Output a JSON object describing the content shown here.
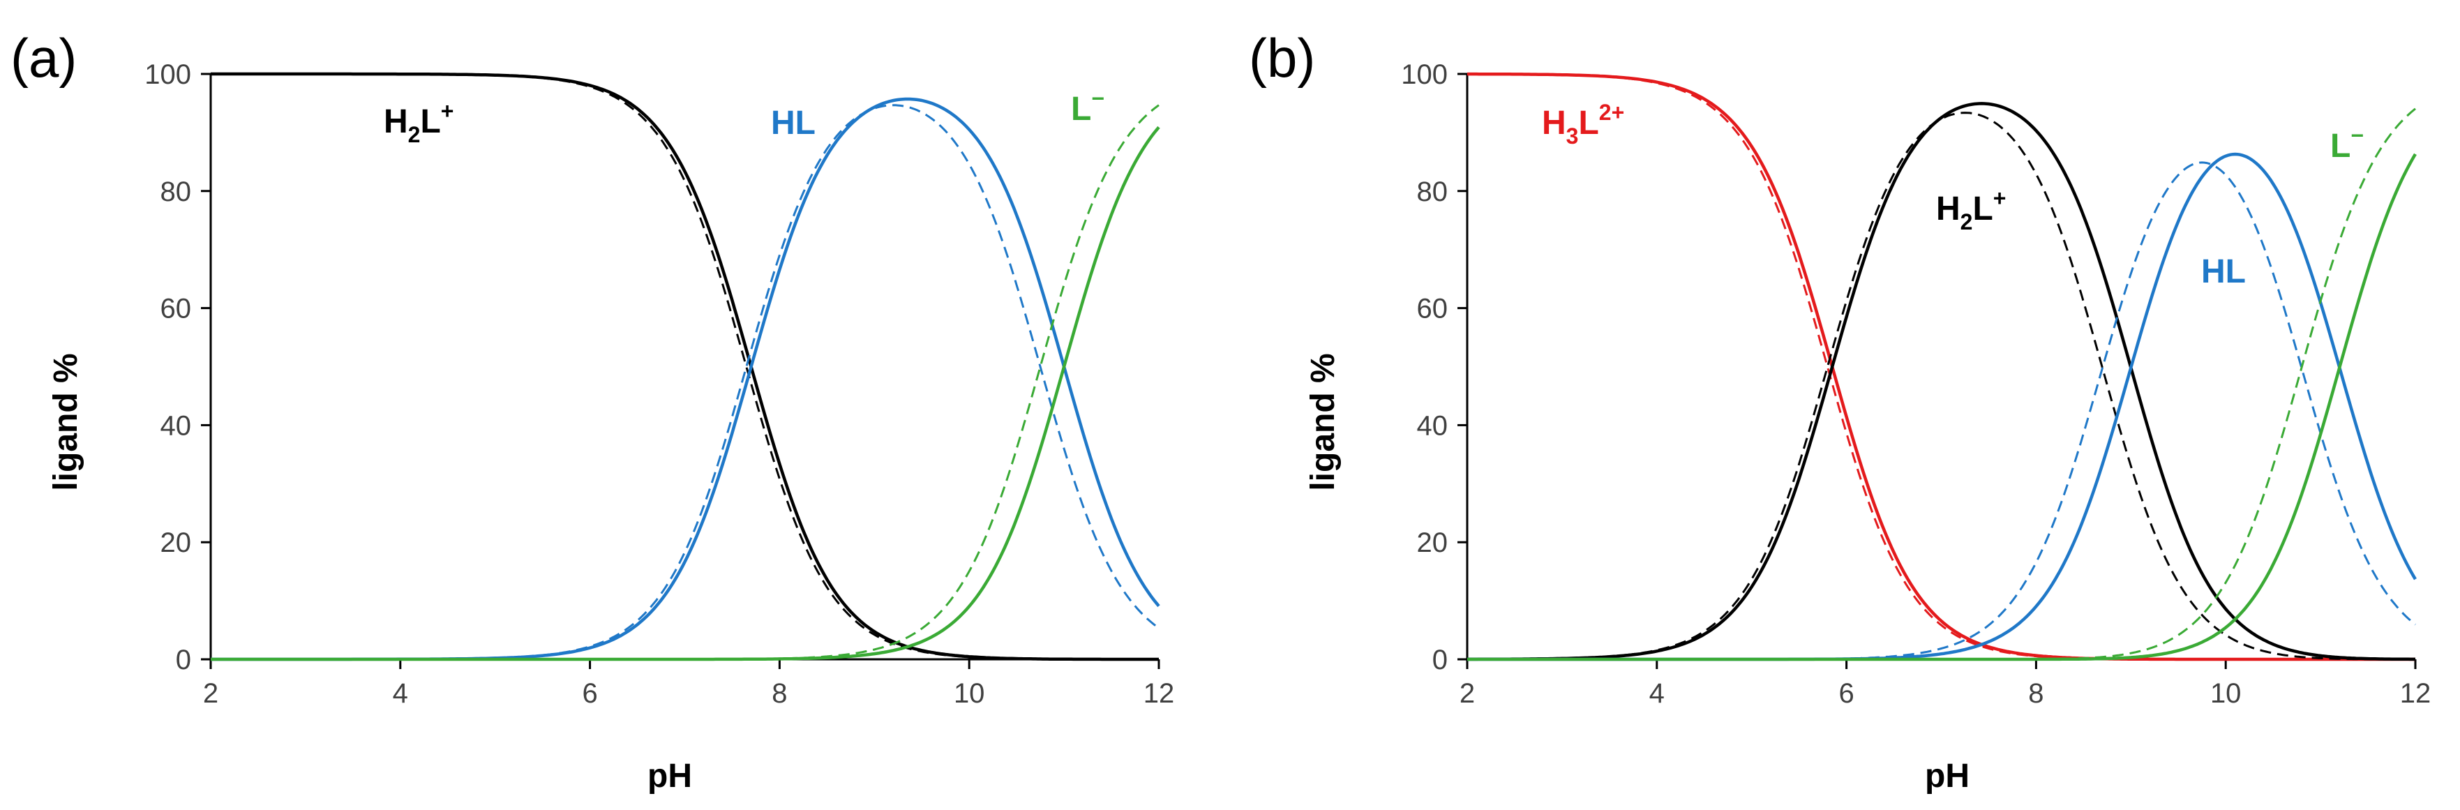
{
  "colors": {
    "black": "#000000",
    "blue": "#1f78c8",
    "green": "#3aaa35",
    "red": "#e41a1c"
  },
  "chart_data": [
    {
      "type": "line",
      "panel_label": "(a)",
      "xlabel": "pH",
      "ylabel": "ligand %",
      "xlim": [
        2,
        12
      ],
      "ylim": [
        0,
        100
      ],
      "xticks": [
        "2",
        "4",
        "6",
        "8",
        "10",
        "12"
      ],
      "yticks": [
        "0",
        "20",
        "40",
        "60",
        "80",
        "100"
      ],
      "species_labels": [
        {
          "base": "H",
          "sub": "2",
          "mid": "L",
          "sup": "+",
          "color": "black"
        },
        {
          "base": "HL",
          "sub": "",
          "mid": "",
          "sup": "",
          "color": "blue"
        },
        {
          "base": "L",
          "sub": "",
          "mid": "",
          "sup": "−",
          "color": "green"
        }
      ],
      "pKa_solid": [
        7.7,
        11.0
      ],
      "pKa_dashed": [
        7.65,
        10.75
      ],
      "series": [
        {
          "name": "H2L+",
          "color": "black",
          "style": "solid",
          "species_index": 0
        },
        {
          "name": "H2L+",
          "color": "black",
          "style": "dashed",
          "species_index": 0
        },
        {
          "name": "HL",
          "color": "blue",
          "style": "solid",
          "species_index": 1
        },
        {
          "name": "HL",
          "color": "blue",
          "style": "dashed",
          "species_index": 1
        },
        {
          "name": "L-",
          "color": "green",
          "style": "solid",
          "species_index": 2
        },
        {
          "name": "L-",
          "color": "green",
          "style": "dashed",
          "species_index": 2
        }
      ]
    },
    {
      "type": "line",
      "panel_label": "(b)",
      "xlabel": "pH",
      "ylabel": "ligand %",
      "xlim": [
        2,
        12
      ],
      "ylim": [
        0,
        100
      ],
      "xticks": [
        "2",
        "4",
        "6",
        "8",
        "10",
        "12"
      ],
      "yticks": [
        "0",
        "20",
        "40",
        "60",
        "80",
        "100"
      ],
      "species_labels": [
        {
          "base": "H",
          "sub": "3",
          "mid": "L",
          "sup": "2+",
          "color": "red"
        },
        {
          "base": "H",
          "sub": "2",
          "mid": "L",
          "sup": "+",
          "color": "black"
        },
        {
          "base": "HL",
          "sub": "",
          "mid": "",
          "sup": "",
          "color": "blue"
        },
        {
          "base": "L",
          "sub": "",
          "mid": "",
          "sup": "−",
          "color": "green"
        }
      ],
      "pKa_solid": [
        5.85,
        9.0,
        11.2
      ],
      "pKa_dashed": [
        5.8,
        8.7,
        10.8
      ],
      "series": [
        {
          "name": "H3L2+",
          "color": "red",
          "style": "solid",
          "species_index": 0
        },
        {
          "name": "H3L2+",
          "color": "red",
          "style": "dashed",
          "species_index": 0
        },
        {
          "name": "H2L+",
          "color": "black",
          "style": "solid",
          "species_index": 1
        },
        {
          "name": "H2L+",
          "color": "black",
          "style": "dashed",
          "species_index": 1
        },
        {
          "name": "HL",
          "color": "blue",
          "style": "solid",
          "species_index": 2
        },
        {
          "name": "HL",
          "color": "blue",
          "style": "dashed",
          "species_index": 2
        },
        {
          "name": "L-",
          "color": "green",
          "style": "solid",
          "species_index": 3
        },
        {
          "name": "L-",
          "color": "green",
          "style": "dashed",
          "species_index": 3
        }
      ]
    }
  ]
}
